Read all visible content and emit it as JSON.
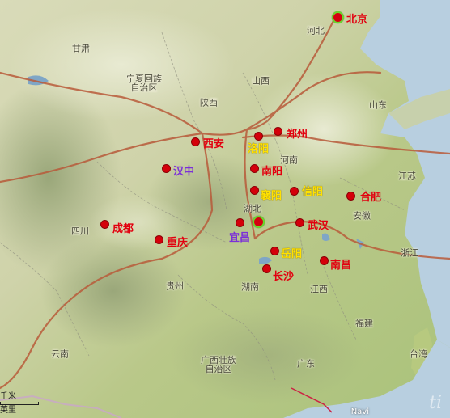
{
  "map": {
    "provinces": [
      {
        "id": "hebei",
        "name": "河北"
      },
      {
        "id": "gansu",
        "name": "甘肃"
      },
      {
        "id": "ningxia",
        "name": "宁夏回族\n自治区"
      },
      {
        "id": "shanxi1",
        "name": "山西"
      },
      {
        "id": "shaanxi",
        "name": "陕西"
      },
      {
        "id": "shandong",
        "name": "山东"
      },
      {
        "id": "henan",
        "name": "河南"
      },
      {
        "id": "jiangsu",
        "name": "江苏"
      },
      {
        "id": "hubei",
        "name": "湖北"
      },
      {
        "id": "anhui",
        "name": "安徽"
      },
      {
        "id": "sichuan",
        "name": "四川"
      },
      {
        "id": "guizhou",
        "name": "贵州"
      },
      {
        "id": "hunan",
        "name": "湖南"
      },
      {
        "id": "jiangxi",
        "name": "江西"
      },
      {
        "id": "zhejiang",
        "name": "浙江"
      },
      {
        "id": "fujian",
        "name": "福建"
      },
      {
        "id": "yunnan",
        "name": "云南"
      },
      {
        "id": "guangxi",
        "name": "广西壮族\n自治区"
      },
      {
        "id": "guangdong",
        "name": "广东"
      },
      {
        "id": "taiwan",
        "name": "台湾"
      }
    ],
    "cities": [
      {
        "id": "beijing",
        "name": "北京",
        "style": "red",
        "highlight": true
      },
      {
        "id": "xian",
        "name": "西安",
        "style": "red"
      },
      {
        "id": "luoyang",
        "name": "洛阳",
        "style": "yellow"
      },
      {
        "id": "zhengzhou",
        "name": "郑州",
        "style": "red"
      },
      {
        "id": "hanzhong",
        "name": "汉中",
        "style": "purple"
      },
      {
        "id": "nanyang",
        "name": "南阳",
        "style": "red"
      },
      {
        "id": "xiangyang",
        "name": "襄阳",
        "style": "yellow"
      },
      {
        "id": "xinyang",
        "name": "信阳",
        "style": "yellow"
      },
      {
        "id": "hefei",
        "name": "合肥",
        "style": "red"
      },
      {
        "id": "chengdu",
        "name": "成都",
        "style": "red"
      },
      {
        "id": "chongqing",
        "name": "重庆",
        "style": "red"
      },
      {
        "id": "yichang",
        "name": "宜昌",
        "style": "purple",
        "highlight": true
      },
      {
        "id": "wuhan",
        "name": "武汉",
        "style": "red"
      },
      {
        "id": "yueyang",
        "name": "岳阳",
        "style": "yellow"
      },
      {
        "id": "changsha",
        "name": "长沙",
        "style": "red"
      },
      {
        "id": "nanchang",
        "name": "南昌",
        "style": "red"
      }
    ],
    "scale": {
      "top": "千米",
      "bottom": "英里"
    },
    "watermark": "Navi",
    "mark": "ti",
    "colors": {
      "city_red": "#e2000f",
      "city_yellow": "#ffe100",
      "city_purple": "#7b2fd8",
      "highlight_ring": "#6ad82c",
      "route": "#b85a3a",
      "sea": "#b8cfe0"
    }
  }
}
